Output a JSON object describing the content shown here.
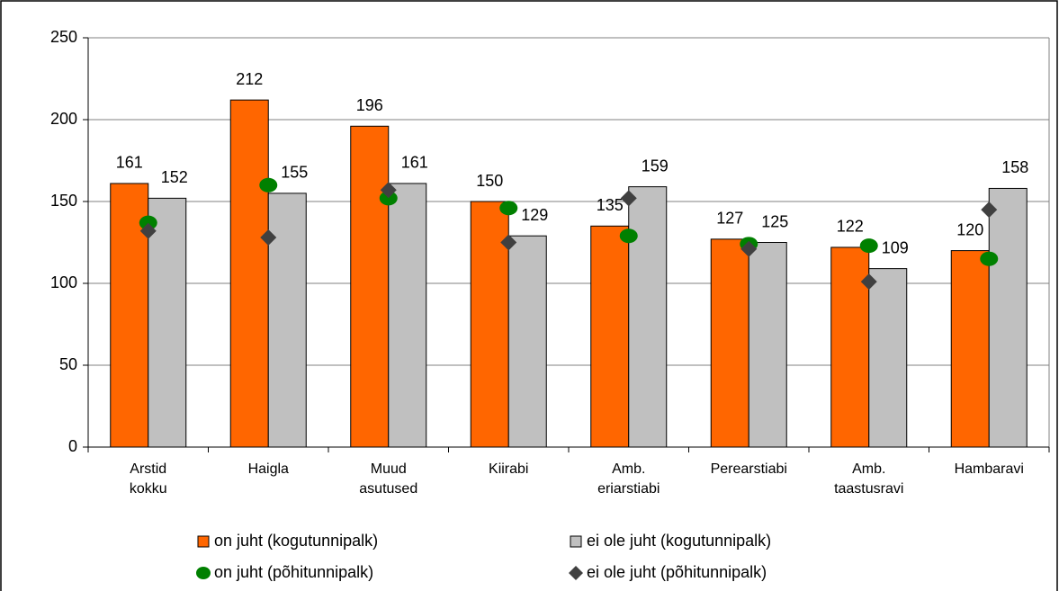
{
  "chart_data": {
    "type": "bar",
    "categories": [
      "Arstid\nkokku",
      "Haigla",
      "Muud\nasutused",
      "Kiirabi",
      "Amb.\neriarstiabi",
      "Perearstiabi",
      "Amb.\ntaastusravi",
      "Hambaravi"
    ],
    "series": [
      {
        "name": "on juht (kogutunnipalk)",
        "color": "#ff6600",
        "mark": "bar",
        "values": [
          161,
          212,
          196,
          150,
          135,
          127,
          122,
          120
        ]
      },
      {
        "name": "ei ole juht (kogutunnipalk)",
        "color": "#c0c0c0",
        "mark": "bar",
        "values": [
          152,
          155,
          161,
          129,
          159,
          125,
          109,
          158
        ]
      },
      {
        "name": "on juht (põhitunnipalk)",
        "color": "#008000",
        "mark": "circle",
        "values": [
          137,
          160,
          152,
          146,
          129,
          124,
          123,
          115
        ]
      },
      {
        "name": "ei ole juht (põhitunnipalk)",
        "color": "#404040",
        "mark": "diamond",
        "values": [
          132,
          128,
          157,
          125,
          152,
          121,
          101,
          145
        ]
      }
    ],
    "ylim": [
      0,
      250
    ],
    "yticks": [
      0,
      50,
      100,
      150,
      200,
      250
    ],
    "grid": true,
    "legend": "bottom"
  }
}
